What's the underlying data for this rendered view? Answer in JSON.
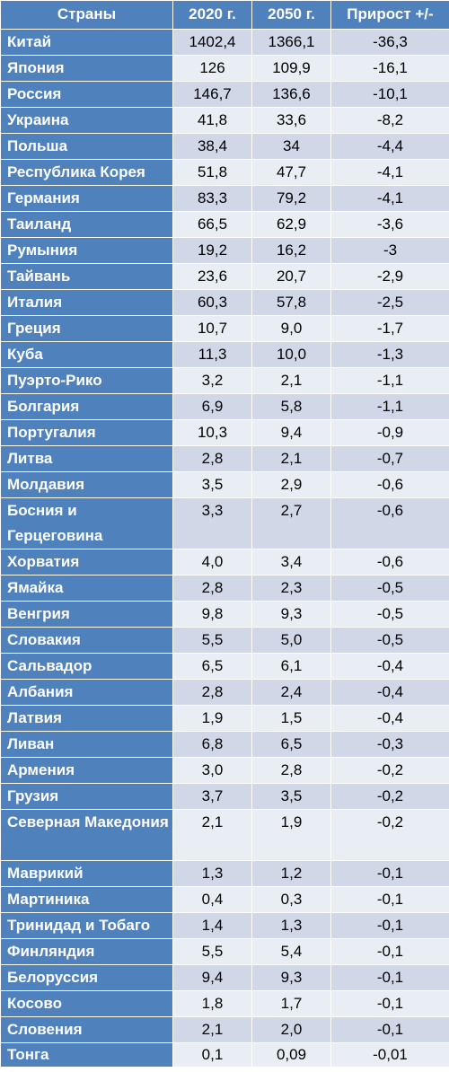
{
  "table": {
    "headers": {
      "country": "Страны",
      "y2020": "2020 г.",
      "y2050": "2050 г.",
      "delta": "Прирост +/-"
    },
    "rows": [
      {
        "country": "Китай",
        "y2020": "1402,4",
        "y2050": "1366,1",
        "delta": "-36,3"
      },
      {
        "country": "Япония",
        "y2020": "126",
        "y2050": "109,9",
        "delta": "-16,1"
      },
      {
        "country": "Россия",
        "y2020": "146,7",
        "y2050": "136,6",
        "delta": "-10,1"
      },
      {
        "country": "Украина",
        "y2020": "41,8",
        "y2050": "33,6",
        "delta": "-8,2"
      },
      {
        "country": "Польша",
        "y2020": "38,4",
        "y2050": "34",
        "delta": "-4,4"
      },
      {
        "country": "Республика Корея",
        "y2020": "51,8",
        "y2050": "47,7",
        "delta": "-4,1"
      },
      {
        "country": "Германия",
        "y2020": "83,3",
        "y2050": "79,2",
        "delta": "-4,1"
      },
      {
        "country": "Таиланд",
        "y2020": "66,5",
        "y2050": "62,9",
        "delta": "-3,6"
      },
      {
        "country": "Румыния",
        "y2020": "19,2",
        "y2050": "16,2",
        "delta": "-3"
      },
      {
        "country": "Тайвань",
        "y2020": "23,6",
        "y2050": "20,7",
        "delta": "-2,9"
      },
      {
        "country": "Италия",
        "y2020": "60,3",
        "y2050": "57,8",
        "delta": "-2,5"
      },
      {
        "country": "Греция",
        "y2020": "10,7",
        "y2050": "9,0",
        "delta": "-1,7"
      },
      {
        "country": "Куба",
        "y2020": "11,3",
        "y2050": "10,0",
        "delta": "-1,3"
      },
      {
        "country": "Пуэрто-Рико",
        "y2020": "3,2",
        "y2050": "2,1",
        "delta": "-1,1"
      },
      {
        "country": "Болгария",
        "y2020": "6,9",
        "y2050": "5,8",
        "delta": "-1,1"
      },
      {
        "country": "Португалия",
        "y2020": "10,3",
        "y2050": "9,4",
        "delta": "-0,9"
      },
      {
        "country": "Литва",
        "y2020": "2,8",
        "y2050": "2,1",
        "delta": "-0,7"
      },
      {
        "country": "Молдавия",
        "y2020": "3,5",
        "y2050": "2,9",
        "delta": "-0,6"
      },
      {
        "country": "Босния и Герцеговина",
        "y2020": "3,3",
        "y2050": "2,7",
        "delta": "-0,6"
      },
      {
        "country": "Хорватия",
        "y2020": "4,0",
        "y2050": "3,4",
        "delta": "-0,6"
      },
      {
        "country": "Ямайка",
        "y2020": "2,8",
        "y2050": "2,3",
        "delta": "-0,5"
      },
      {
        "country": "Венгрия",
        "y2020": "9,8",
        "y2050": "9,3",
        "delta": "-0,5"
      },
      {
        "country": "Словакия",
        "y2020": "5,5",
        "y2050": "5,0",
        "delta": "-0,5"
      },
      {
        "country": "Сальвадор",
        "y2020": "6,5",
        "y2050": "6,1",
        "delta": "-0,4"
      },
      {
        "country": "Албания",
        "y2020": "2,8",
        "y2050": "2,4",
        "delta": "-0,4"
      },
      {
        "country": "Латвия",
        "y2020": "1,9",
        "y2050": "1,5",
        "delta": "-0,4"
      },
      {
        "country": "Ливан",
        "y2020": "6,8",
        "y2050": "6,5",
        "delta": "-0,3"
      },
      {
        "country": "Армения",
        "y2020": "3,0",
        "y2050": "2,8",
        "delta": "-0,2"
      },
      {
        "country": "Грузия",
        "y2020": "3,7",
        "y2050": "3,5",
        "delta": "-0,2"
      },
      {
        "country": "Северная Македония",
        "y2020": "2,1",
        "y2050": "1,9",
        "delta": "-0,2"
      },
      {
        "country": "Маврикий",
        "y2020": "1,3",
        "y2050": "1,2",
        "delta": "-0,1"
      },
      {
        "country": "Мартиника",
        "y2020": "0,4",
        "y2050": "0,3",
        "delta": "-0,1"
      },
      {
        "country": "Тринидад и Тобаго",
        "y2020": "1,4",
        "y2050": "1,3",
        "delta": "-0,1"
      },
      {
        "country": "Финляндия",
        "y2020": "5,5",
        "y2050": "5,4",
        "delta": "-0,1"
      },
      {
        "country": "Белоруссия",
        "y2020": "9,4",
        "y2050": "9,3",
        "delta": "-0,1"
      },
      {
        "country": "Косово",
        "y2020": "1,8",
        "y2050": "1,7",
        "delta": "-0,1"
      },
      {
        "country": "Словения",
        "y2020": "2,1",
        "y2050": "2,0",
        "delta": "-0,1"
      },
      {
        "country": "Тонга",
        "y2020": "0,1",
        "y2050": "0,09",
        "delta": "-0,01"
      }
    ]
  }
}
